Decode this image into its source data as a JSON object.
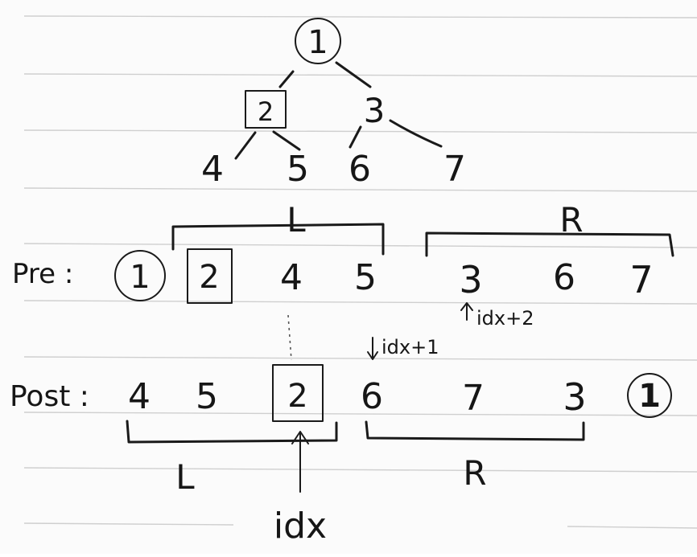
{
  "tree": {
    "root": "1",
    "left": "2",
    "right": "3",
    "leaves": [
      "4",
      "5",
      "6",
      "7"
    ]
  },
  "preorder": {
    "label": "Pre :",
    "values": [
      "1",
      "2",
      "4",
      "5",
      "3",
      "6",
      "7"
    ],
    "left_group_label": "L",
    "right_group_label": "R",
    "pointer_label": "idx+2"
  },
  "postorder": {
    "label": "Post :",
    "values": [
      "4",
      "5",
      "2",
      "6",
      "7",
      "3",
      "1"
    ],
    "left_group_label": "L",
    "right_group_label": "R",
    "pointer_label": "idx+1",
    "idx_label": "idx"
  }
}
